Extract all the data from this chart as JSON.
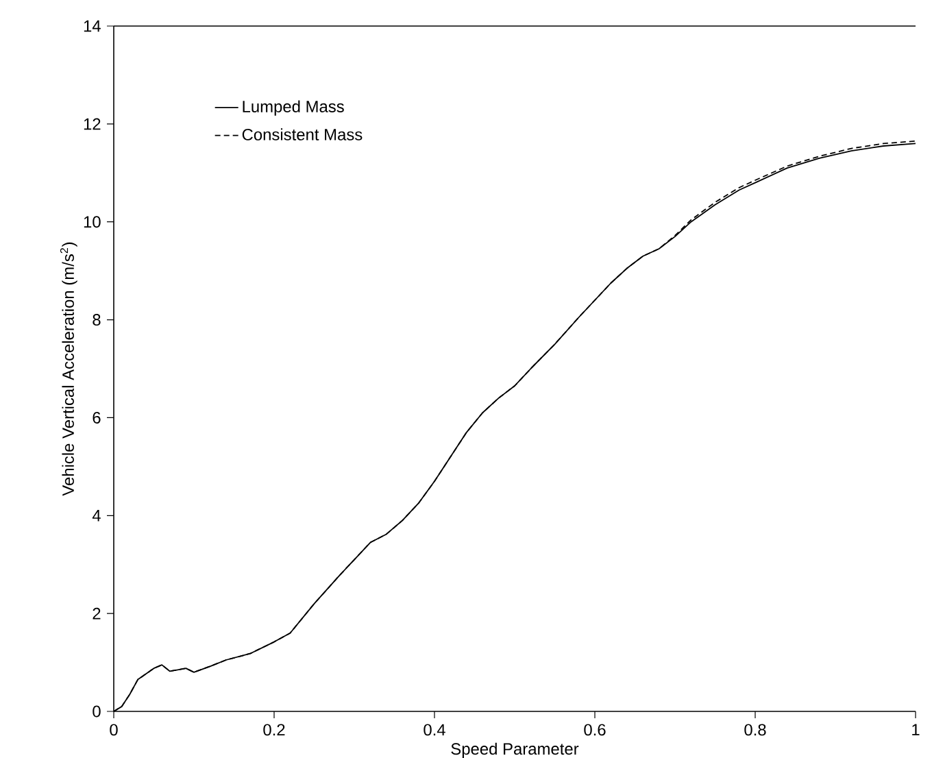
{
  "chart_data": {
    "type": "line",
    "xlabel": "Speed Parameter",
    "ylabel": "Vehicle Vertical Acceleration (m/s$^{2}$)",
    "xlim": [
      0,
      1
    ],
    "ylim": [
      0,
      14
    ],
    "xticks": [
      0,
      0.2,
      0.4,
      0.6,
      0.8,
      1
    ],
    "yticks": [
      0,
      2,
      4,
      6,
      8,
      10,
      12,
      14
    ],
    "grid": false,
    "legend": "top left",
    "marker": "none",
    "series": [
      {
        "name": "Lumped Mass",
        "color": "#000000",
        "line_style": "solid",
        "x": [
          0,
          0.01,
          0.02,
          0.03,
          0.05,
          0.06,
          0.07,
          0.09,
          0.1,
          0.12,
          0.14,
          0.17,
          0.2,
          0.22,
          0.25,
          0.28,
          0.3,
          0.32,
          0.34,
          0.36,
          0.38,
          0.4,
          0.42,
          0.44,
          0.46,
          0.48,
          0.5,
          0.52,
          0.55,
          0.58,
          0.6,
          0.62,
          0.64,
          0.66,
          0.68,
          0.7,
          0.72,
          0.75,
          0.78,
          0.8,
          0.84,
          0.88,
          0.92,
          0.96,
          1.0
        ],
        "values": [
          0,
          0.1,
          0.35,
          0.65,
          0.88,
          0.95,
          0.82,
          0.88,
          0.8,
          0.92,
          1.05,
          1.18,
          1.42,
          1.6,
          2.2,
          2.75,
          3.1,
          3.45,
          3.62,
          3.9,
          4.25,
          4.7,
          5.2,
          5.7,
          6.1,
          6.4,
          6.65,
          7.0,
          7.5,
          8.05,
          8.4,
          8.75,
          9.05,
          9.3,
          9.45,
          9.7,
          10.0,
          10.35,
          10.65,
          10.8,
          11.1,
          11.3,
          11.45,
          11.55,
          11.6
        ]
      },
      {
        "name": "Consistent Mass",
        "color": "#000000",
        "line_style": "dashed",
        "x": [
          0,
          0.01,
          0.02,
          0.03,
          0.05,
          0.06,
          0.07,
          0.09,
          0.1,
          0.12,
          0.14,
          0.17,
          0.2,
          0.22,
          0.25,
          0.28,
          0.3,
          0.32,
          0.34,
          0.36,
          0.38,
          0.4,
          0.42,
          0.44,
          0.46,
          0.48,
          0.5,
          0.52,
          0.55,
          0.58,
          0.6,
          0.62,
          0.64,
          0.66,
          0.68,
          0.7,
          0.72,
          0.75,
          0.78,
          0.8,
          0.84,
          0.88,
          0.92,
          0.96,
          1.0
        ],
        "values": [
          0,
          0.1,
          0.35,
          0.65,
          0.88,
          0.95,
          0.82,
          0.88,
          0.8,
          0.92,
          1.05,
          1.18,
          1.42,
          1.6,
          2.2,
          2.75,
          3.1,
          3.45,
          3.62,
          3.9,
          4.25,
          4.7,
          5.2,
          5.7,
          6.1,
          6.4,
          6.65,
          7.0,
          7.5,
          8.05,
          8.4,
          8.75,
          9.05,
          9.3,
          9.45,
          9.72,
          10.04,
          10.4,
          10.7,
          10.85,
          11.14,
          11.34,
          11.5,
          11.6,
          11.65
        ]
      }
    ]
  }
}
